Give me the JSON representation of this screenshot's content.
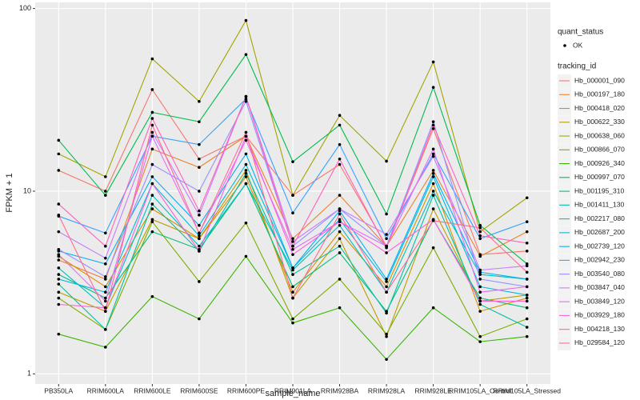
{
  "chart_data": {
    "type": "line",
    "x_label": "sample_name",
    "y_label": "FPKM + 1",
    "categories": [
      "PB350LA",
      "RRIM600LA",
      "RRIM600LE",
      "RRIM600SE",
      "RRIM600PE",
      "RRIM901LA",
      "RRIM928BA",
      "RRIM928LA",
      "RRIM928LE",
      "RRIM105LA_Control",
      "RRIM105LA_Stressed"
    ],
    "log_y": true,
    "ylim": [
      0.88,
      108
    ],
    "yticks": [
      1,
      10,
      100
    ],
    "grid": true,
    "point_color": "#000000",
    "shape_legend": {
      "title": "quant_status",
      "labels": [
        "OK"
      ]
    },
    "legend_title": "tracking_id",
    "legend_position": "right",
    "series": [
      {
        "name": "Hb_000001_090",
        "color": "#F8766D",
        "values": [
          13,
          10,
          36,
          15,
          20,
          9.5,
          14,
          5,
          22,
          4.5,
          4.7
        ]
      },
      {
        "name": "Hb_000197_180",
        "color": "#EA8331",
        "values": [
          4.2,
          3.3,
          17,
          13.5,
          20,
          5.5,
          9.5,
          5,
          13,
          4.4,
          6
        ]
      },
      {
        "name": "Hb_000418_020",
        "color": "#D89000",
        "values": [
          4.4,
          3,
          8,
          5.5,
          12,
          2.8,
          6,
          3,
          11,
          2.2,
          2.6
        ]
      },
      {
        "name": "Hb_000622_330",
        "color": "#C09B00",
        "values": [
          2.8,
          2.2,
          7,
          5.5,
          13,
          2.6,
          5.5,
          1.6,
          8,
          2.5,
          2.7
        ]
      },
      {
        "name": "Hb_000638_060",
        "color": "#A3A500",
        "values": [
          16,
          12,
          53,
          31,
          86,
          9.5,
          26,
          14.6,
          51,
          6,
          9.2
        ]
      },
      {
        "name": "Hb_000866_070",
        "color": "#7CAE00",
        "values": [
          2.6,
          1.75,
          6.8,
          3.2,
          6.7,
          2,
          3.3,
          1.65,
          4.9,
          1.6,
          2
        ]
      },
      {
        "name": "Hb_000926_340",
        "color": "#39B600",
        "values": [
          1.65,
          1.4,
          2.65,
          2,
          4.4,
          1.9,
          2.3,
          1.2,
          2.3,
          1.5,
          1.6
        ]
      },
      {
        "name": "Hb_000997_070",
        "color": "#00BB4E",
        "values": [
          19,
          9.5,
          27,
          24,
          56,
          14.5,
          23,
          7.5,
          37,
          6.5,
          4
        ]
      },
      {
        "name": "Hb_001195_310",
        "color": "#00BF7D",
        "values": [
          3.5,
          2.6,
          6,
          4.8,
          11,
          3,
          4.6,
          2.2,
          7,
          2.6,
          2.3
        ]
      },
      {
        "name": "Hb_001411_130",
        "color": "#00C1A3",
        "values": [
          3.1,
          1.75,
          8.5,
          4.7,
          12.5,
          3.5,
          5,
          2.15,
          9.5,
          2.4,
          1.8
        ]
      },
      {
        "name": "Hb_002217_080",
        "color": "#00BFC4",
        "values": [
          3.8,
          2.3,
          9.5,
          5,
          11,
          3.7,
          6.5,
          2.8,
          10,
          3.5,
          3.3
        ]
      },
      {
        "name": "Hb_002687_200",
        "color": "#00BAE0",
        "values": [
          3.3,
          2.8,
          11,
          5.7,
          14,
          3.8,
          7,
          3.2,
          12,
          3,
          2.7
        ]
      },
      {
        "name": "Hb_002739_120",
        "color": "#00B0F6",
        "values": [
          4.7,
          4,
          12,
          6.5,
          16,
          3.8,
          7.8,
          3.3,
          12.5,
          3.6,
          3.3
        ]
      },
      {
        "name": "Hb_002942_230",
        "color": "#35A2FF",
        "values": [
          7.3,
          5.9,
          20,
          18,
          32,
          7.6,
          18,
          5.5,
          16,
          5.5,
          6.8
        ]
      },
      {
        "name": "Hb_003540_080",
        "color": "#9590FF",
        "values": [
          4.8,
          3.4,
          14,
          10,
          31,
          5,
          8,
          5,
          24,
          3.3,
          3
        ]
      },
      {
        "name": "Hb_003847_040",
        "color": "#C77CFF",
        "values": [
          6,
          4.3,
          21,
          7.4,
          33,
          5.3,
          8,
          5.8,
          15.5,
          3.7,
          3.9
        ]
      },
      {
        "name": "Hb_003849_120",
        "color": "#E76BF3",
        "values": [
          4.5,
          2.5,
          20,
          5.9,
          19,
          4.8,
          6.8,
          5,
          17,
          2.8,
          3
        ]
      },
      {
        "name": "Hb_003929_180",
        "color": "#FA62DB",
        "values": [
          2.4,
          2.3,
          11,
          4.7,
          20,
          4.5,
          6.8,
          4.6,
          7,
          2.5,
          2.5
        ]
      },
      {
        "name": "Hb_004218_130",
        "color": "#FF62BC",
        "values": [
          8.5,
          5,
          25,
          7.8,
          33,
          5,
          15,
          4.9,
          23,
          5.7,
          5.2
        ]
      },
      {
        "name": "Hb_029584_120",
        "color": "#FF6C91",
        "values": [
          7.4,
          2.2,
          23,
          5.9,
          21,
          2.6,
          7.5,
          2.8,
          6.9,
          6.3,
          3.6
        ]
      }
    ]
  }
}
